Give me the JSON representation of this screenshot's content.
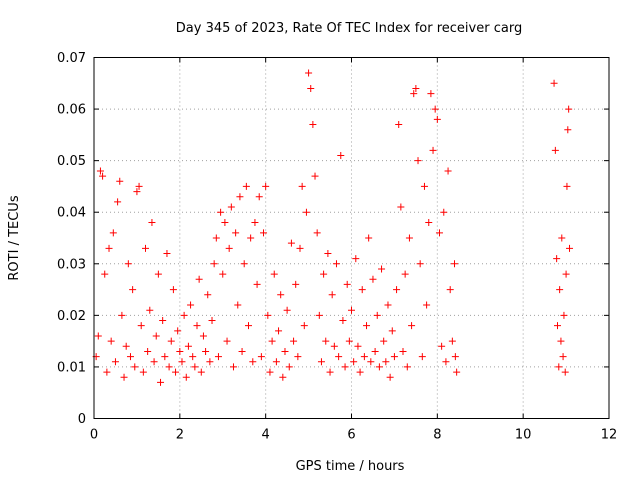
{
  "chart_data": {
    "type": "scatter",
    "title": "Day 345 of 2023, Rate Of TEC Index for receiver carg",
    "xlabel": "GPS time / hours",
    "ylabel": "ROTI / TECUs",
    "xlim": [
      0,
      12
    ],
    "ylim": [
      0,
      0.07
    ],
    "xticks": [
      0,
      2,
      4,
      6,
      8,
      10,
      12
    ],
    "yticks": [
      0,
      0.01,
      0.02,
      0.03,
      0.04,
      0.05,
      0.06,
      0.07
    ],
    "grid": true,
    "marker": "plus",
    "color": "#ff0000",
    "series": [
      {
        "name": "ROTI",
        "points": [
          [
            0.05,
            0.012
          ],
          [
            0.1,
            0.016
          ],
          [
            0.15,
            0.048
          ],
          [
            0.2,
            0.047
          ],
          [
            0.25,
            0.028
          ],
          [
            0.3,
            0.009
          ],
          [
            0.35,
            0.033
          ],
          [
            0.4,
            0.015
          ],
          [
            0.45,
            0.036
          ],
          [
            0.5,
            0.011
          ],
          [
            0.55,
            0.042
          ],
          [
            0.6,
            0.046
          ],
          [
            0.65,
            0.02
          ],
          [
            0.7,
            0.008
          ],
          [
            0.75,
            0.014
          ],
          [
            0.8,
            0.03
          ],
          [
            0.85,
            0.012
          ],
          [
            0.9,
            0.025
          ],
          [
            0.95,
            0.01
          ],
          [
            1.0,
            0.044
          ],
          [
            1.05,
            0.045
          ],
          [
            1.1,
            0.018
          ],
          [
            1.15,
            0.009
          ],
          [
            1.2,
            0.033
          ],
          [
            1.25,
            0.013
          ],
          [
            1.3,
            0.021
          ],
          [
            1.35,
            0.038
          ],
          [
            1.4,
            0.011
          ],
          [
            1.45,
            0.016
          ],
          [
            1.5,
            0.028
          ],
          [
            1.55,
            0.007
          ],
          [
            1.6,
            0.019
          ],
          [
            1.65,
            0.012
          ],
          [
            1.7,
            0.032
          ],
          [
            1.75,
            0.01
          ],
          [
            1.8,
            0.015
          ],
          [
            1.85,
            0.025
          ],
          [
            1.9,
            0.009
          ],
          [
            1.95,
            0.017
          ],
          [
            2.0,
            0.013
          ],
          [
            2.05,
            0.011
          ],
          [
            2.1,
            0.02
          ],
          [
            2.15,
            0.008
          ],
          [
            2.2,
            0.014
          ],
          [
            2.25,
            0.022
          ],
          [
            2.3,
            0.012
          ],
          [
            2.35,
            0.01
          ],
          [
            2.4,
            0.018
          ],
          [
            2.45,
            0.027
          ],
          [
            2.5,
            0.009
          ],
          [
            2.55,
            0.016
          ],
          [
            2.6,
            0.013
          ],
          [
            2.65,
            0.024
          ],
          [
            2.7,
            0.011
          ],
          [
            2.75,
            0.019
          ],
          [
            2.8,
            0.03
          ],
          [
            2.85,
            0.035
          ],
          [
            2.9,
            0.012
          ],
          [
            2.95,
            0.04
          ],
          [
            3.0,
            0.028
          ],
          [
            3.05,
            0.038
          ],
          [
            3.1,
            0.015
          ],
          [
            3.15,
            0.033
          ],
          [
            3.2,
            0.041
          ],
          [
            3.25,
            0.01
          ],
          [
            3.3,
            0.036
          ],
          [
            3.35,
            0.022
          ],
          [
            3.4,
            0.043
          ],
          [
            3.45,
            0.013
          ],
          [
            3.5,
            0.03
          ],
          [
            3.55,
            0.045
          ],
          [
            3.6,
            0.018
          ],
          [
            3.65,
            0.035
          ],
          [
            3.7,
            0.011
          ],
          [
            3.75,
            0.038
          ],
          [
            3.8,
            0.026
          ],
          [
            3.85,
            0.043
          ],
          [
            3.9,
            0.012
          ],
          [
            3.95,
            0.036
          ],
          [
            4.0,
            0.045
          ],
          [
            4.05,
            0.02
          ],
          [
            4.1,
            0.009
          ],
          [
            4.15,
            0.015
          ],
          [
            4.2,
            0.028
          ],
          [
            4.25,
            0.011
          ],
          [
            4.3,
            0.017
          ],
          [
            4.35,
            0.024
          ],
          [
            4.4,
            0.008
          ],
          [
            4.45,
            0.013
          ],
          [
            4.5,
            0.021
          ],
          [
            4.55,
            0.01
          ],
          [
            4.6,
            0.034
          ],
          [
            4.65,
            0.015
          ],
          [
            4.7,
            0.026
          ],
          [
            4.75,
            0.012
          ],
          [
            4.8,
            0.033
          ],
          [
            4.85,
            0.045
          ],
          [
            4.9,
            0.018
          ],
          [
            4.95,
            0.04
          ],
          [
            5.0,
            0.067
          ],
          [
            5.05,
            0.064
          ],
          [
            5.1,
            0.057
          ],
          [
            5.15,
            0.047
          ],
          [
            5.2,
            0.036
          ],
          [
            5.25,
            0.02
          ],
          [
            5.3,
            0.011
          ],
          [
            5.35,
            0.028
          ],
          [
            5.4,
            0.015
          ],
          [
            5.45,
            0.032
          ],
          [
            5.5,
            0.009
          ],
          [
            5.55,
            0.024
          ],
          [
            5.6,
            0.014
          ],
          [
            5.65,
            0.03
          ],
          [
            5.7,
            0.012
          ],
          [
            5.75,
            0.051
          ],
          [
            5.8,
            0.019
          ],
          [
            5.85,
            0.01
          ],
          [
            5.9,
            0.026
          ],
          [
            5.95,
            0.015
          ],
          [
            6.0,
            0.021
          ],
          [
            6.05,
            0.011
          ],
          [
            6.1,
            0.031
          ],
          [
            6.15,
            0.014
          ],
          [
            6.2,
            0.009
          ],
          [
            6.25,
            0.025
          ],
          [
            6.3,
            0.012
          ],
          [
            6.35,
            0.018
          ],
          [
            6.4,
            0.035
          ],
          [
            6.45,
            0.011
          ],
          [
            6.5,
            0.027
          ],
          [
            6.55,
            0.013
          ],
          [
            6.6,
            0.02
          ],
          [
            6.65,
            0.01
          ],
          [
            6.7,
            0.029
          ],
          [
            6.75,
            0.015
          ],
          [
            6.8,
            0.011
          ],
          [
            6.85,
            0.022
          ],
          [
            6.9,
            0.008
          ],
          [
            6.95,
            0.017
          ],
          [
            7.0,
            0.012
          ],
          [
            7.05,
            0.025
          ],
          [
            7.1,
            0.057
          ],
          [
            7.15,
            0.041
          ],
          [
            7.2,
            0.013
          ],
          [
            7.25,
            0.028
          ],
          [
            7.3,
            0.01
          ],
          [
            7.35,
            0.035
          ],
          [
            7.4,
            0.018
          ],
          [
            7.45,
            0.063
          ],
          [
            7.5,
            0.064
          ],
          [
            7.55,
            0.05
          ],
          [
            7.6,
            0.03
          ],
          [
            7.65,
            0.012
          ],
          [
            7.7,
            0.045
          ],
          [
            7.75,
            0.022
          ],
          [
            7.8,
            0.038
          ],
          [
            7.85,
            0.063
          ],
          [
            7.9,
            0.052
          ],
          [
            7.95,
            0.06
          ],
          [
            8.0,
            0.058
          ],
          [
            8.05,
            0.036
          ],
          [
            8.1,
            0.014
          ],
          [
            8.15,
            0.04
          ],
          [
            8.2,
            0.011
          ],
          [
            8.25,
            0.048
          ],
          [
            8.3,
            0.025
          ],
          [
            8.35,
            0.015
          ],
          [
            8.4,
            0.03
          ],
          [
            8.42,
            0.012
          ],
          [
            8.45,
            0.009
          ],
          [
            10.72,
            0.065
          ],
          [
            10.75,
            0.052
          ],
          [
            10.78,
            0.031
          ],
          [
            10.8,
            0.018
          ],
          [
            10.83,
            0.01
          ],
          [
            10.85,
            0.025
          ],
          [
            10.88,
            0.015
          ],
          [
            10.9,
            0.035
          ],
          [
            10.93,
            0.012
          ],
          [
            10.95,
            0.02
          ],
          [
            10.98,
            0.009
          ],
          [
            11.0,
            0.028
          ],
          [
            11.02,
            0.045
          ],
          [
            11.04,
            0.056
          ],
          [
            11.06,
            0.06
          ],
          [
            11.08,
            0.033
          ]
        ]
      }
    ]
  }
}
